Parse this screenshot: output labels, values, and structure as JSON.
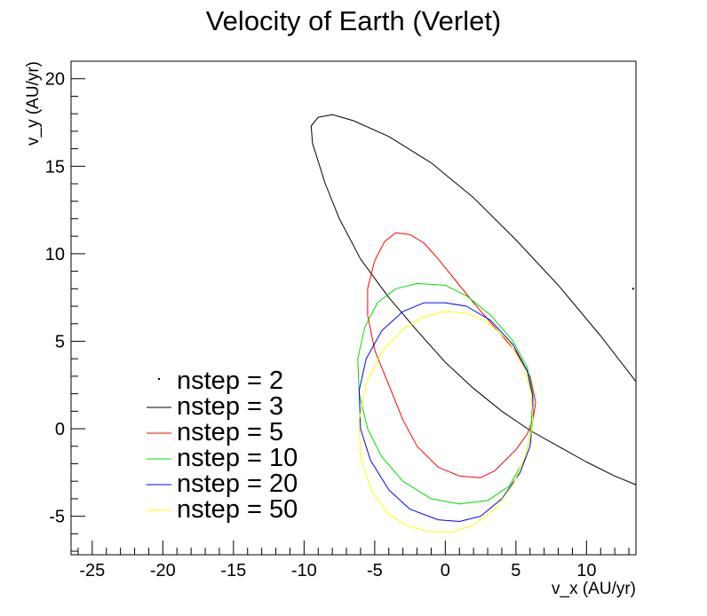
{
  "chart_data": {
    "type": "line",
    "title": "Velocity of Earth (Verlet)",
    "xlabel": "v_x (AU/yr)",
    "ylabel": "v_y (AU/yr)",
    "xlim": [
      -26.5,
      13.5
    ],
    "ylim": [
      -7.2,
      21.0
    ],
    "xticks": [
      -25,
      -20,
      -15,
      -10,
      -5,
      0,
      5,
      10
    ],
    "yticks": [
      -5,
      0,
      5,
      10,
      15,
      20
    ],
    "x_minor_step": 1,
    "y_minor_step": 1,
    "grid": false,
    "legend_position": "bottom-left",
    "series": [
      {
        "name": "nstep = 2",
        "color": "#000000",
        "closed": false,
        "points": [
          [
            13.3,
            8.0
          ]
        ]
      },
      {
        "name": "nstep = 3",
        "color": "#000000",
        "closed": false,
        "points": [
          [
            13.5,
            2.7
          ],
          [
            11.0,
            5.3
          ],
          [
            8.0,
            8.2
          ],
          [
            5.0,
            10.8
          ],
          [
            2.0,
            13.2
          ],
          [
            -1.0,
            15.2
          ],
          [
            -4.0,
            16.7
          ],
          [
            -6.5,
            17.6
          ],
          [
            -8.0,
            17.95
          ],
          [
            -9.0,
            17.8
          ],
          [
            -9.5,
            17.3
          ],
          [
            -9.4,
            16.3
          ],
          [
            -8.5,
            14.0
          ],
          [
            -7.5,
            12.0
          ],
          [
            -6.0,
            9.7
          ],
          [
            -4.0,
            7.5
          ],
          [
            -2.0,
            5.6
          ],
          [
            0.0,
            3.8
          ],
          [
            2.0,
            2.3
          ],
          [
            4.0,
            1.0
          ],
          [
            6.0,
            -0.1
          ],
          [
            8.0,
            -1.0
          ],
          [
            10.0,
            -1.9
          ],
          [
            12.0,
            -2.7
          ],
          [
            13.5,
            -3.2
          ]
        ]
      },
      {
        "name": "nstep = 5",
        "color": "#ff0000",
        "closed": true,
        "points": [
          [
            6.2,
            0.5
          ],
          [
            6.4,
            1.5
          ],
          [
            6.0,
            3.0
          ],
          [
            5.0,
            4.4
          ],
          [
            3.5,
            5.8
          ],
          [
            2.0,
            7.2
          ],
          [
            0.5,
            8.7
          ],
          [
            -0.5,
            9.7
          ],
          [
            -1.5,
            10.6
          ],
          [
            -2.5,
            11.1
          ],
          [
            -3.5,
            11.2
          ],
          [
            -4.3,
            10.7
          ],
          [
            -5.0,
            9.6
          ],
          [
            -5.5,
            8.0
          ],
          [
            -5.5,
            6.5
          ],
          [
            -5.0,
            4.5
          ],
          [
            -4.0,
            2.5
          ],
          [
            -3.0,
            0.5
          ],
          [
            -2.0,
            -1.0
          ],
          [
            -0.5,
            -2.2
          ],
          [
            1.0,
            -2.7
          ],
          [
            2.5,
            -2.8
          ],
          [
            3.5,
            -2.4
          ],
          [
            5.0,
            -1.2
          ],
          [
            5.8,
            -0.3
          ]
        ]
      },
      {
        "name": "nstep = 10",
        "color": "#00dd00",
        "closed": true,
        "points": [
          [
            6.1,
            0.5
          ],
          [
            6.2,
            2.0
          ],
          [
            5.8,
            3.5
          ],
          [
            4.8,
            5.0
          ],
          [
            3.2,
            6.5
          ],
          [
            1.5,
            7.6
          ],
          [
            0.0,
            8.2
          ],
          [
            -2.0,
            8.3
          ],
          [
            -3.5,
            8.0
          ],
          [
            -4.8,
            7.2
          ],
          [
            -5.7,
            5.8
          ],
          [
            -6.2,
            4.0
          ],
          [
            -6.1,
            2.0
          ],
          [
            -5.5,
            0.0
          ],
          [
            -4.5,
            -1.6
          ],
          [
            -3.0,
            -3.0
          ],
          [
            -1.0,
            -4.0
          ],
          [
            1.0,
            -4.3
          ],
          [
            3.0,
            -4.1
          ],
          [
            4.5,
            -3.3
          ],
          [
            5.6,
            -1.8
          ],
          [
            6.0,
            -0.5
          ]
        ]
      },
      {
        "name": "nstep = 20",
        "color": "#0000ff",
        "closed": true,
        "points": [
          [
            6.2,
            0.5
          ],
          [
            6.2,
            1.8
          ],
          [
            5.8,
            3.3
          ],
          [
            4.8,
            4.8
          ],
          [
            3.2,
            6.2
          ],
          [
            1.5,
            7.0
          ],
          [
            0.0,
            7.2
          ],
          [
            -1.5,
            7.2
          ],
          [
            -3.0,
            6.7
          ],
          [
            -4.5,
            5.6
          ],
          [
            -5.6,
            4.0
          ],
          [
            -6.1,
            2.2
          ],
          [
            -6.0,
            0.0
          ],
          [
            -5.3,
            -1.8
          ],
          [
            -4.0,
            -3.5
          ],
          [
            -2.5,
            -4.6
          ],
          [
            -0.5,
            -5.2
          ],
          [
            1.0,
            -5.3
          ],
          [
            2.5,
            -5.0
          ],
          [
            4.0,
            -4.0
          ],
          [
            5.3,
            -2.5
          ],
          [
            6.0,
            -1.0
          ]
        ]
      },
      {
        "name": "nstep = 50",
        "color": "#ffff00",
        "closed": true,
        "points": [
          [
            6.2,
            0.5
          ],
          [
            6.1,
            2.0
          ],
          [
            5.5,
            3.6
          ],
          [
            4.5,
            5.0
          ],
          [
            3.0,
            6.1
          ],
          [
            1.5,
            6.6
          ],
          [
            0.0,
            6.7
          ],
          [
            -1.5,
            6.4
          ],
          [
            -3.0,
            5.7
          ],
          [
            -4.5,
            4.4
          ],
          [
            -5.6,
            2.6
          ],
          [
            -6.1,
            0.5
          ],
          [
            -6.0,
            -1.6
          ],
          [
            -5.2,
            -3.6
          ],
          [
            -4.0,
            -4.9
          ],
          [
            -2.5,
            -5.6
          ],
          [
            -1.0,
            -5.9
          ],
          [
            0.5,
            -5.9
          ],
          [
            2.0,
            -5.5
          ],
          [
            3.5,
            -4.6
          ],
          [
            4.8,
            -3.2
          ],
          [
            5.7,
            -1.5
          ],
          [
            6.1,
            -0.2
          ]
        ]
      }
    ]
  }
}
